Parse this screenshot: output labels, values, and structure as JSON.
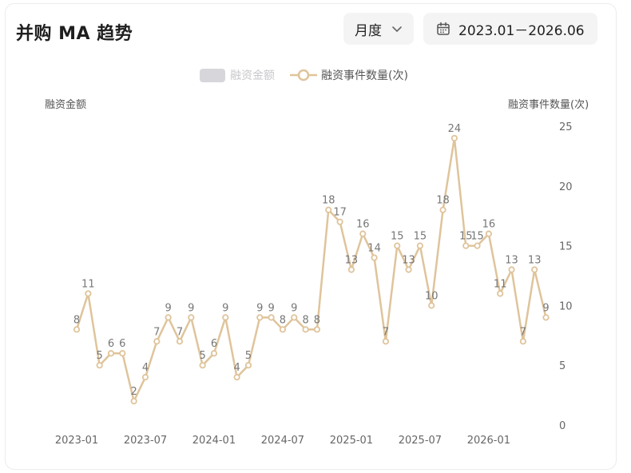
{
  "header": {
    "title": "并购 MA 趋势",
    "period_value": "月度",
    "date_range": "2023.01－2026.06"
  },
  "icons": {
    "period_dropdown": "chevron-down-icon",
    "date_range": "calendar-icon"
  },
  "colors": {
    "line": "#dfc49b",
    "legend_inactive": "#c8c8cc",
    "axis_text": "#666666"
  },
  "chart_data": {
    "type": "line",
    "legend": [
      "融资金额",
      "融资事件数量(次)"
    ],
    "legend_inactive": [
      "融资金额"
    ],
    "ylabel_left": "融资金额",
    "ylabel_right": "融资事件数量(次)",
    "x": [
      "2023-01",
      "2023-02",
      "2023-03",
      "2023-04",
      "2023-05",
      "2023-06",
      "2023-07",
      "2023-08",
      "2023-09",
      "2023-10",
      "2023-11",
      "2023-12",
      "2024-01",
      "2024-02",
      "2024-03",
      "2024-04",
      "2024-05",
      "2024-06",
      "2024-07",
      "2024-08",
      "2024-09",
      "2024-10",
      "2024-11",
      "2024-12",
      "2025-01",
      "2025-02",
      "2025-03",
      "2025-04",
      "2025-05",
      "2025-06",
      "2025-07",
      "2025-08",
      "2025-09",
      "2025-10",
      "2025-11",
      "2025-12",
      "2026-01",
      "2026-02",
      "2026-03",
      "2026-04",
      "2026-05",
      "2026-06"
    ],
    "x_tick_labels": [
      "2023-01",
      "2023-07",
      "2024-01",
      "2024-07",
      "2025-01",
      "2025-07",
      "2026-01"
    ],
    "series": [
      {
        "name": "融资事件数量(次)",
        "values": [
          8,
          11,
          5,
          6,
          6,
          2,
          4,
          7,
          9,
          7,
          9,
          5,
          6,
          9,
          4,
          5,
          9,
          9,
          8,
          9,
          8,
          8,
          18,
          17,
          13,
          16,
          14,
          7,
          15,
          13,
          15,
          10,
          18,
          24,
          15,
          15,
          16,
          11,
          13,
          7,
          13,
          9
        ]
      }
    ],
    "ylim_right": [
      0,
      25
    ],
    "y_ticks_right": [
      0,
      5,
      10,
      15,
      20,
      25
    ],
    "data_labels": true,
    "grid": false,
    "legend_position": "top-center"
  }
}
